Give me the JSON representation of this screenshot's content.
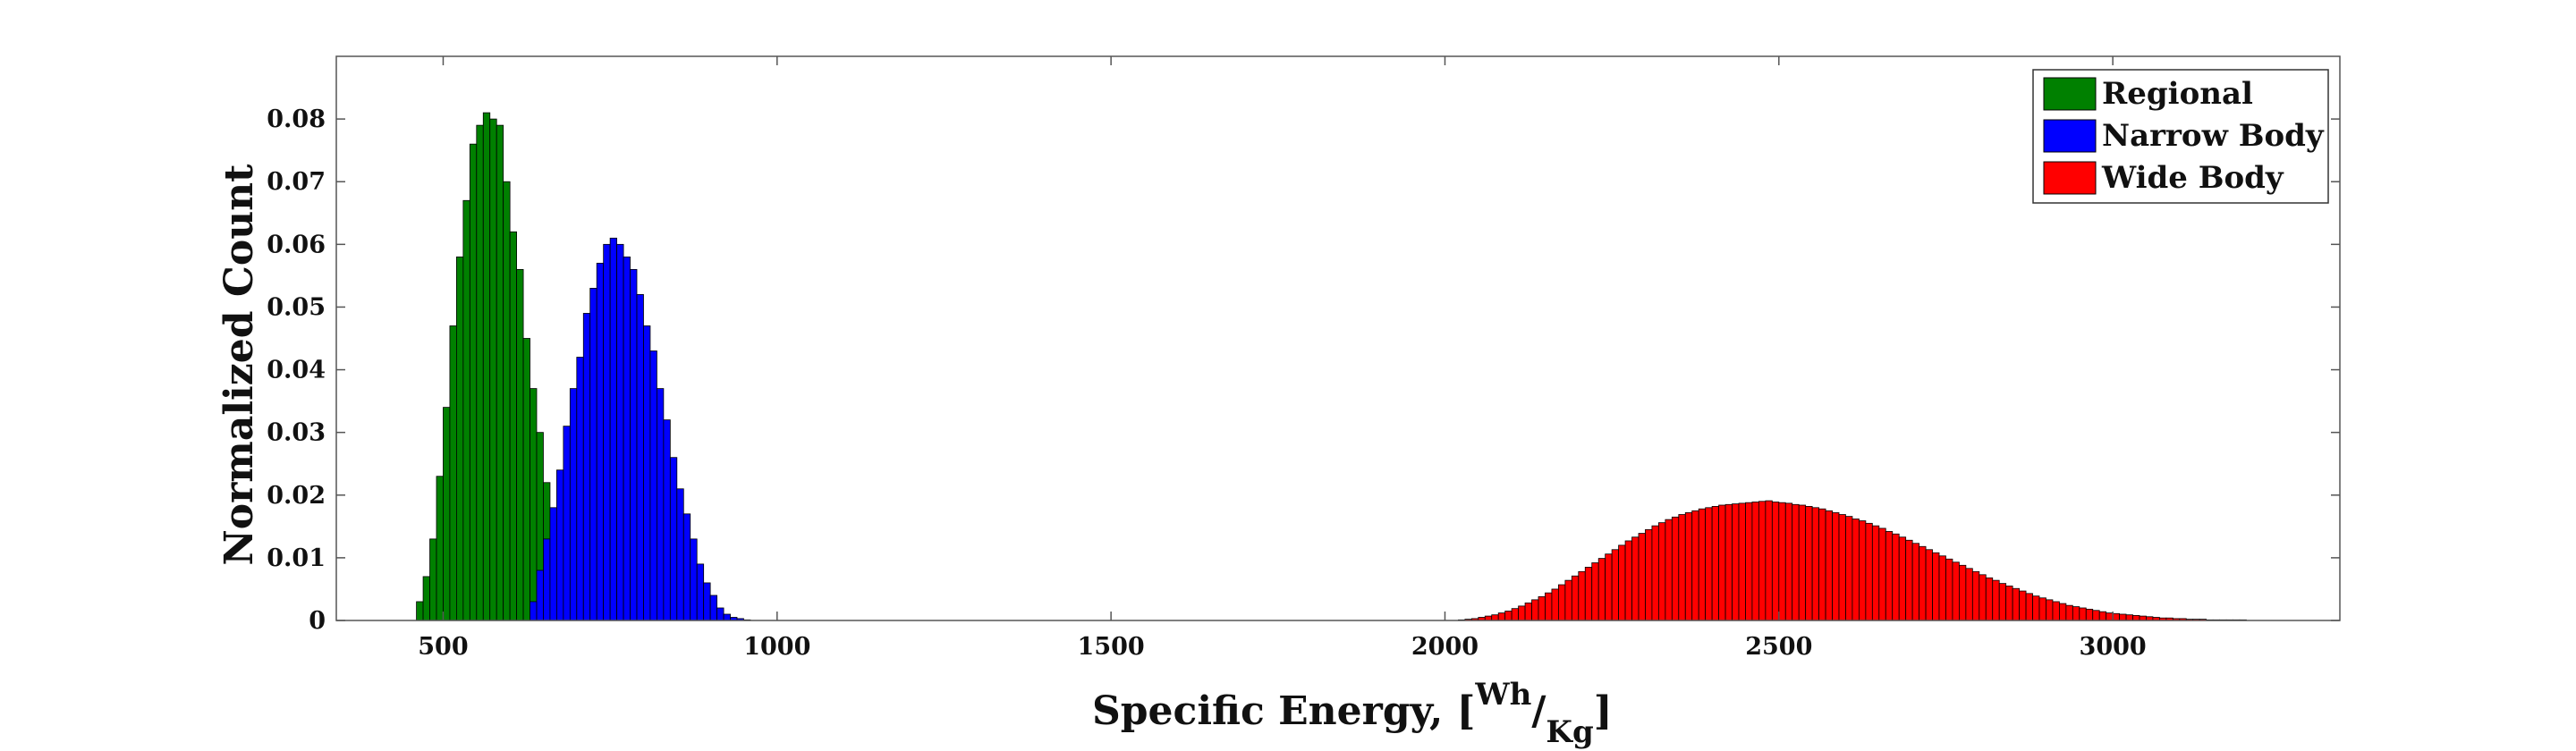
{
  "chart_data": {
    "type": "bar",
    "title": "",
    "xlabel": {
      "main": "Specific Energy, [",
      "num": "Wh",
      "slash": "/",
      "den": "Kg",
      "close": "]"
    },
    "ylabel": "Normalized Count",
    "xlim": [
      340,
      3340
    ],
    "ylim": [
      0,
      0.09
    ],
    "xticks": [
      500,
      1000,
      1500,
      2000,
      2500,
      3000
    ],
    "xtick_labels": [
      "500",
      "1000",
      "1500",
      "2000",
      "2500",
      "3000"
    ],
    "yticks": [
      0,
      0.01,
      0.02,
      0.03,
      0.04,
      0.05,
      0.06,
      0.07,
      0.08
    ],
    "ytick_labels": [
      "0",
      "0.01",
      "0.02",
      "0.03",
      "0.04",
      "0.05",
      "0.06",
      "0.07",
      "0.08"
    ],
    "grid": false,
    "legend_position": "top-right",
    "bar_edge_color": "#000000",
    "series": [
      {
        "name": "Regional",
        "color": "#008000",
        "bin_width": 10,
        "x": [
          465,
          475,
          485,
          495,
          505,
          515,
          525,
          535,
          545,
          555,
          565,
          575,
          585,
          595,
          605,
          615,
          625,
          635,
          645,
          655,
          665
        ],
        "values": [
          0.003,
          0.007,
          0.013,
          0.023,
          0.034,
          0.047,
          0.058,
          0.067,
          0.076,
          0.079,
          0.081,
          0.08,
          0.079,
          0.07,
          0.062,
          0.056,
          0.045,
          0.037,
          0.03,
          0.022,
          0.014
        ]
      },
      {
        "name": "Narrow Body",
        "color": "#0000ff",
        "bin_width": 10,
        "x": [
          635,
          645,
          655,
          665,
          675,
          685,
          695,
          705,
          715,
          725,
          735,
          745,
          755,
          765,
          775,
          785,
          795,
          805,
          815,
          825,
          835,
          845,
          855,
          865,
          875,
          885,
          895,
          905,
          915,
          925,
          935,
          945,
          955
        ],
        "values": [
          0.003,
          0.008,
          0.013,
          0.018,
          0.024,
          0.031,
          0.037,
          0.042,
          0.049,
          0.053,
          0.057,
          0.06,
          0.061,
          0.06,
          0.058,
          0.056,
          0.052,
          0.047,
          0.043,
          0.037,
          0.032,
          0.026,
          0.021,
          0.017,
          0.013,
          0.009,
          0.006,
          0.004,
          0.002,
          0.001,
          0.0005,
          0.0003,
          0.0001
        ]
      },
      {
        "name": "Wide Body",
        "color": "#ff0000",
        "bin_width": 10,
        "x": [
          2025,
          2035,
          2045,
          2055,
          2065,
          2075,
          2085,
          2095,
          2105,
          2115,
          2125,
          2135,
          2145,
          2155,
          2165,
          2175,
          2185,
          2195,
          2205,
          2215,
          2225,
          2235,
          2245,
          2255,
          2265,
          2275,
          2285,
          2295,
          2305,
          2315,
          2325,
          2335,
          2345,
          2355,
          2365,
          2375,
          2385,
          2395,
          2405,
          2415,
          2425,
          2435,
          2445,
          2455,
          2465,
          2475,
          2485,
          2495,
          2505,
          2515,
          2525,
          2535,
          2545,
          2555,
          2565,
          2575,
          2585,
          2595,
          2605,
          2615,
          2625,
          2635,
          2645,
          2655,
          2665,
          2675,
          2685,
          2695,
          2705,
          2715,
          2725,
          2735,
          2745,
          2755,
          2765,
          2775,
          2785,
          2795,
          2805,
          2815,
          2825,
          2835,
          2845,
          2855,
          2865,
          2875,
          2885,
          2895,
          2905,
          2915,
          2925,
          2935,
          2945,
          2955,
          2965,
          2975,
          2985,
          2995,
          3005,
          3015,
          3025,
          3035,
          3045,
          3055,
          3065,
          3075,
          3085,
          3095,
          3105,
          3115,
          3125,
          3135,
          3145,
          3155,
          3165,
          3175,
          3185,
          3195
        ],
        "values": [
          0.0001,
          0.0002,
          0.0003,
          0.0005,
          0.0007,
          0.0009,
          0.0012,
          0.0015,
          0.0019,
          0.0023,
          0.0028,
          0.0033,
          0.0038,
          0.0044,
          0.005,
          0.0057,
          0.0064,
          0.0071,
          0.0078,
          0.0085,
          0.0092,
          0.0099,
          0.0106,
          0.0113,
          0.012,
          0.0127,
          0.0133,
          0.0139,
          0.0145,
          0.0151,
          0.0156,
          0.0161,
          0.0165,
          0.0169,
          0.0172,
          0.0175,
          0.0178,
          0.018,
          0.0182,
          0.0184,
          0.0185,
          0.0186,
          0.0187,
          0.0188,
          0.0189,
          0.019,
          0.0191,
          0.0189,
          0.0188,
          0.0187,
          0.0185,
          0.0184,
          0.0182,
          0.018,
          0.0178,
          0.0175,
          0.0172,
          0.0169,
          0.0166,
          0.0162,
          0.0159,
          0.0155,
          0.0151,
          0.0147,
          0.0142,
          0.0138,
          0.0133,
          0.0128,
          0.0123,
          0.0118,
          0.0113,
          0.0108,
          0.0103,
          0.0098,
          0.0093,
          0.0088,
          0.0083,
          0.0078,
          0.0073,
          0.0068,
          0.0064,
          0.0059,
          0.0055,
          0.0051,
          0.0047,
          0.0043,
          0.0039,
          0.0036,
          0.0033,
          0.003,
          0.0027,
          0.0024,
          0.0022,
          0.002,
          0.0018,
          0.0016,
          0.0014,
          0.0012,
          0.0011,
          0.001,
          0.0009,
          0.0008,
          0.0007,
          0.0006,
          0.0005,
          0.0004,
          0.0004,
          0.0003,
          0.0003,
          0.0002,
          0.0002,
          0.0002,
          0.0001,
          0.0001,
          0.0001,
          0.0001,
          0.0001,
          0.0001
        ]
      }
    ]
  }
}
